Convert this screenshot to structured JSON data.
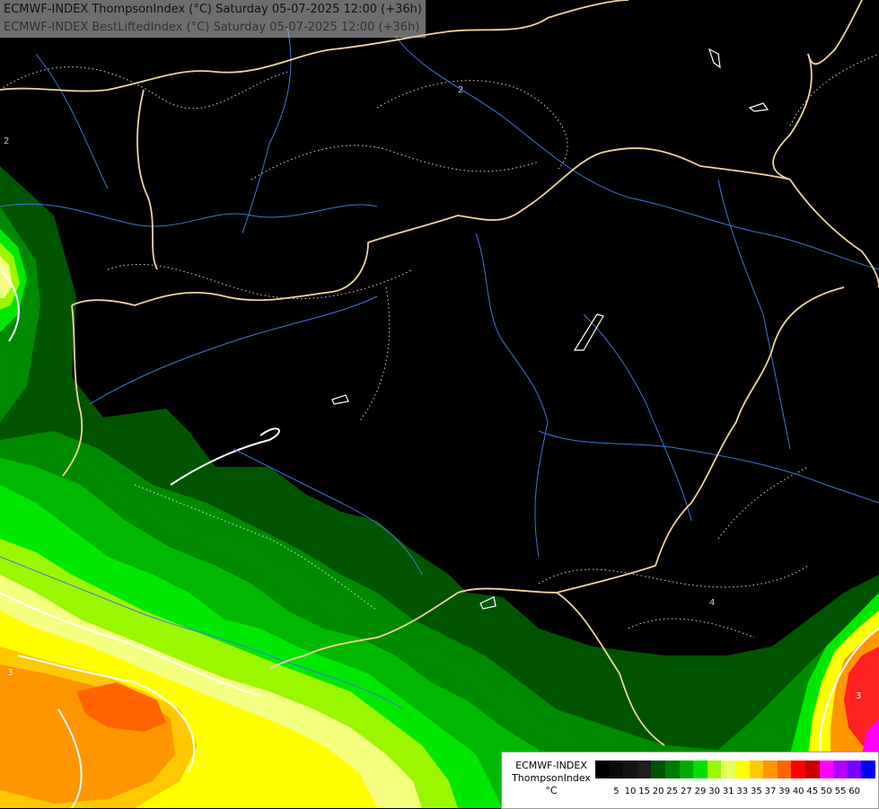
{
  "header": {
    "line1": "ECMWF-INDEX ThompsonIndex (°C) Saturday 05-07-2025 12:00 (+36h)",
    "line2": "ECMWF-INDEX BestLiftedIndex (°C) Saturday 05-07-2025 12:00 (+36h)"
  },
  "legend": {
    "model": "ECMWF-INDEX",
    "param": "ThompsonIndex",
    "unit": "°C",
    "levels": [
      "5",
      "10",
      "15",
      "20",
      "25",
      "27",
      "29",
      "30",
      "31",
      "33",
      "35",
      "37",
      "39",
      "40",
      "45",
      "50",
      "55",
      "60"
    ],
    "colors": [
      "#000000",
      "#0a0a0a",
      "#141414",
      "#1e1e1e",
      "#005400",
      "#007a00",
      "#00a800",
      "#00e000",
      "#9bf700",
      "#e6ff5a",
      "#ffff00",
      "#ffc800",
      "#ff9600",
      "#ff6400",
      "#ff0000",
      "#c80000",
      "#ff00ff",
      "#b400ff",
      "#7a00ff",
      "#0000ff"
    ]
  },
  "contour_labels": [
    "2",
    "2",
    "4",
    "3",
    "3"
  ],
  "colors": {
    "border": "#f2d2a0",
    "river": "#3c78d8",
    "contour": "#ffffff",
    "background": "#000000"
  }
}
